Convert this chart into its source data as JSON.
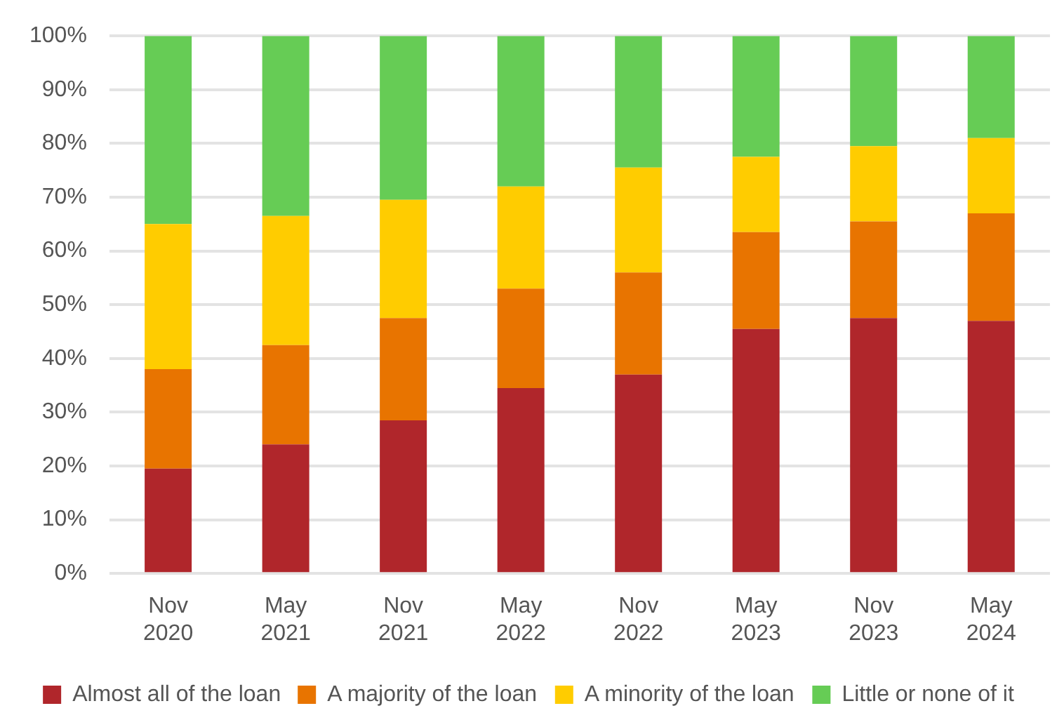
{
  "chart_data": {
    "type": "bar",
    "stacked": true,
    "categories": [
      "Nov 2020",
      "May 2021",
      "Nov 2021",
      "May 2022",
      "Nov 2022",
      "May 2023",
      "Nov 2023",
      "May 2024"
    ],
    "series": [
      {
        "name": "Almost all of the loan",
        "color": "#b0262b",
        "values": [
          19.5,
          24,
          28.5,
          34.5,
          37,
          45.5,
          47.5,
          47
        ]
      },
      {
        "name": "A majority of the loan",
        "color": "#e87400",
        "values": [
          18.5,
          18.5,
          19,
          18.5,
          19,
          18,
          18,
          20
        ]
      },
      {
        "name": "A minority of the loan",
        "color": "#ffcc00",
        "values": [
          27,
          24,
          22,
          19,
          19.5,
          14,
          14,
          14
        ]
      },
      {
        "name": "Little or none of it",
        "color": "#66cc55",
        "values": [
          35,
          33.5,
          30.5,
          28,
          24.5,
          22.5,
          20.5,
          19
        ]
      }
    ],
    "ylim": [
      0,
      100
    ],
    "yticks": [
      {
        "value": 0,
        "label": "0%"
      },
      {
        "value": 10,
        "label": "10%"
      },
      {
        "value": 20,
        "label": "20%"
      },
      {
        "value": 30,
        "label": "30%"
      },
      {
        "value": 40,
        "label": "40%"
      },
      {
        "value": 50,
        "label": "50%"
      },
      {
        "value": 60,
        "label": "60%"
      },
      {
        "value": 70,
        "label": "70%"
      },
      {
        "value": 80,
        "label": "80%"
      },
      {
        "value": 90,
        "label": "90%"
      },
      {
        "value": 100,
        "label": "100%"
      }
    ],
    "grid": "y",
    "legend": "bottom"
  }
}
